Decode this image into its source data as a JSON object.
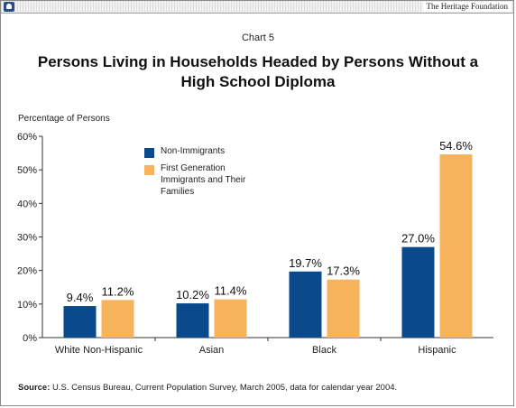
{
  "header": {
    "brand": "The Heritage Foundation",
    "icon": "liberty-bell-icon"
  },
  "chart_data": {
    "type": "bar",
    "chart_number": "Chart 5",
    "title": "Persons Living in Households Headed by Persons Without a High School Diploma",
    "ylabel": "Percentage of Persons",
    "ylim": [
      0,
      60
    ],
    "yticks": [
      "0%",
      "10%",
      "20%",
      "30%",
      "40%",
      "50%",
      "60%"
    ],
    "categories": [
      "White Non-Hispanic",
      "Asian",
      "Black",
      "Hispanic"
    ],
    "series": [
      {
        "name": "Non-Immigrants",
        "color": "#0a4a8c",
        "values": [
          9.4,
          10.2,
          19.7,
          27.0
        ],
        "labels": [
          "9.4%",
          "10.2%",
          "19.7%",
          "27.0%"
        ]
      },
      {
        "name": "First Generation Immigrants and Their Families",
        "color": "#f7b25c",
        "values": [
          11.2,
          11.4,
          17.3,
          54.6
        ],
        "labels": [
          "11.2%",
          "11.4%",
          "17.3%",
          "54.6%"
        ]
      }
    ],
    "legend_position": "top-left",
    "grid": false
  },
  "source": {
    "prefix": "Source:",
    "text": "U.S. Census Bureau, Current Population Survey, March 2005, data for calendar year 2004."
  }
}
